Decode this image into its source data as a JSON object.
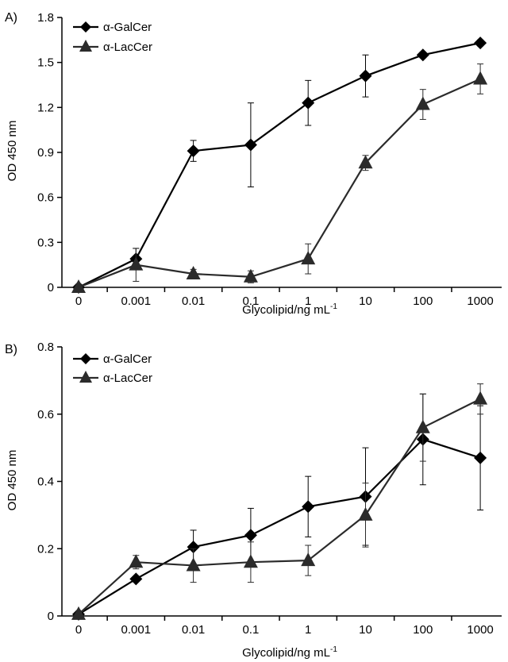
{
  "chart_data": [
    {
      "type": "line",
      "panel_label": "A)",
      "categories": [
        "0",
        "0.001",
        "0.01",
        "0.1",
        "1",
        "10",
        "100",
        "1000"
      ],
      "xlabel": "Glycolipid/ng mL",
      "xlabel_sup": "-1",
      "ylabel": "OD 450 nm",
      "ylim": [
        0,
        1.8
      ],
      "yticks": [
        "0",
        "0.3",
        "0.6",
        "0.9",
        "1.2",
        "1.5",
        "1.8"
      ],
      "grid": false,
      "legend_position": "top-left",
      "series": [
        {
          "name": "α-GalCer",
          "marker": "diamond",
          "values": [
            0.0,
            0.19,
            0.91,
            0.95,
            1.23,
            1.41,
            1.55,
            1.63
          ],
          "errors": [
            0.0,
            0.07,
            0.07,
            0.28,
            0.15,
            0.14,
            0.02,
            0.02
          ]
        },
        {
          "name": "α-LacCer",
          "marker": "triangle",
          "values": [
            0.0,
            0.15,
            0.09,
            0.07,
            0.19,
            0.83,
            1.22,
            1.39
          ],
          "errors": [
            0.0,
            0.11,
            0.03,
            0.04,
            0.1,
            0.05,
            0.1,
            0.1
          ]
        }
      ]
    },
    {
      "type": "line",
      "panel_label": "B)",
      "categories": [
        "0",
        "0.001",
        "0.01",
        "0.1",
        "1",
        "10",
        "100",
        "1000"
      ],
      "xlabel": "Glycolipid/ng mL",
      "xlabel_sup": "-1",
      "ylabel": "OD 450 nm",
      "ylim": [
        0,
        0.8
      ],
      "yticks": [
        "0",
        "0.2",
        "0.4",
        "0.6",
        "0.8"
      ],
      "grid": false,
      "legend_position": "top-left",
      "series": [
        {
          "name": "α-GalCer",
          "marker": "diamond",
          "values": [
            0.005,
            0.11,
            0.205,
            0.24,
            0.325,
            0.355,
            0.525,
            0.47
          ],
          "errors": [
            0.0,
            0.0,
            0.05,
            0.08,
            0.09,
            0.145,
            0.135,
            0.155
          ]
        },
        {
          "name": "α-LacCer",
          "marker": "triangle",
          "values": [
            0.005,
            0.16,
            0.15,
            0.16,
            0.165,
            0.3,
            0.56,
            0.645
          ],
          "errors": [
            0.0,
            0.02,
            0.05,
            0.06,
            0.045,
            0.095,
            0.1,
            0.045
          ]
        }
      ]
    }
  ]
}
